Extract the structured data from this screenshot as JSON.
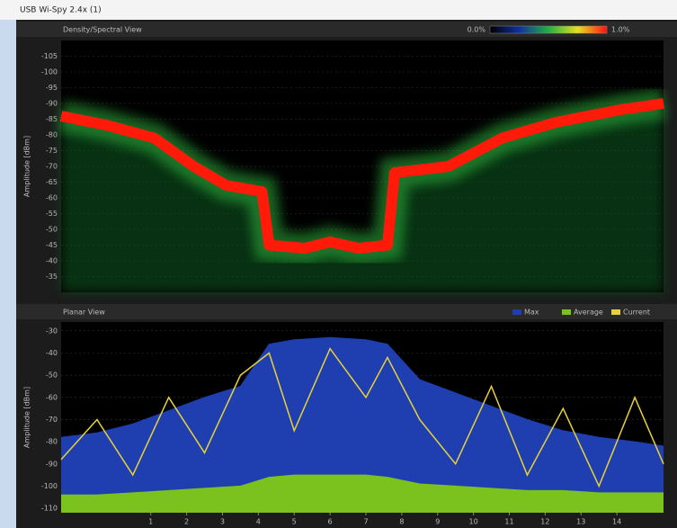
{
  "window_title": "USB Wi-Spy 2.4x (1)",
  "chart_data": [
    {
      "type": "density",
      "title": "Density/Spectral View",
      "ylabel": "Amplitude [dBm]",
      "colorbar_labels": [
        "0.0%",
        "1.0%"
      ],
      "xlim": [
        -1.5,
        15.3
      ],
      "ylim": [
        -30,
        -110
      ],
      "yticks": [
        -35,
        -40,
        -45,
        -50,
        -55,
        -60,
        -65,
        -70,
        -75,
        -80,
        -85,
        -90,
        -95,
        -100,
        -105
      ],
      "grid": true,
      "color": "#ff1a0a",
      "x": [
        -1.5,
        -0.2,
        1.1,
        2.2,
        3.1,
        4.1,
        4.3,
        5.3,
        6,
        6.8,
        7.6,
        7.8,
        9.3,
        10.8,
        12.3,
        14.1,
        15.3
      ],
      "values": [
        -86,
        -83,
        -79,
        -70,
        -64,
        -62,
        -45,
        -44,
        -46,
        -44,
        -45,
        -68,
        -70,
        -79,
        -84,
        -88,
        -90
      ]
    },
    {
      "type": "area",
      "title": "Planar View",
      "ylabel": "Amplitude [dBm]",
      "xlim": [
        -1.5,
        15.3
      ],
      "ylim": [
        -112,
        -26
      ],
      "xticks": [
        1,
        2,
        3,
        4,
        5,
        6,
        7,
        8,
        9,
        10,
        11,
        12,
        13,
        14
      ],
      "yticks": [
        -30,
        -40,
        -50,
        -60,
        -70,
        -80,
        -90,
        -100,
        -110
      ],
      "grid": true,
      "legend": "top-right",
      "x": [
        -1.5,
        -0.5,
        0.5,
        1.5,
        2.5,
        3.5,
        4.3,
        5,
        6,
        7,
        7.6,
        8.5,
        9.5,
        10.5,
        11.5,
        12.5,
        13.5,
        14.5,
        15.3
      ],
      "series": [
        {
          "name": "Max",
          "color": "#1f3fb0",
          "values": [
            -78,
            -76,
            -72,
            -66,
            -60,
            -55,
            -36,
            -34,
            -33,
            -34,
            -36,
            -52,
            -58,
            -64,
            -70,
            -75,
            -78,
            -80,
            -82
          ]
        },
        {
          "name": "Average",
          "color": "#7cc21e",
          "values": [
            -104,
            -104,
            -103,
            -102,
            -101,
            -100,
            -96,
            -95,
            -95,
            -95,
            -96,
            -99,
            -100,
            -101,
            -102,
            -102,
            -103,
            -103,
            -103
          ]
        },
        {
          "name": "Current",
          "color": "#e8d23a",
          "values": [
            -88,
            -70,
            -95,
            -60,
            -85,
            -50,
            -40,
            -75,
            -38,
            -60,
            -42,
            -70,
            -90,
            -55,
            -95,
            -65,
            -100,
            -60,
            -90
          ]
        }
      ]
    }
  ]
}
